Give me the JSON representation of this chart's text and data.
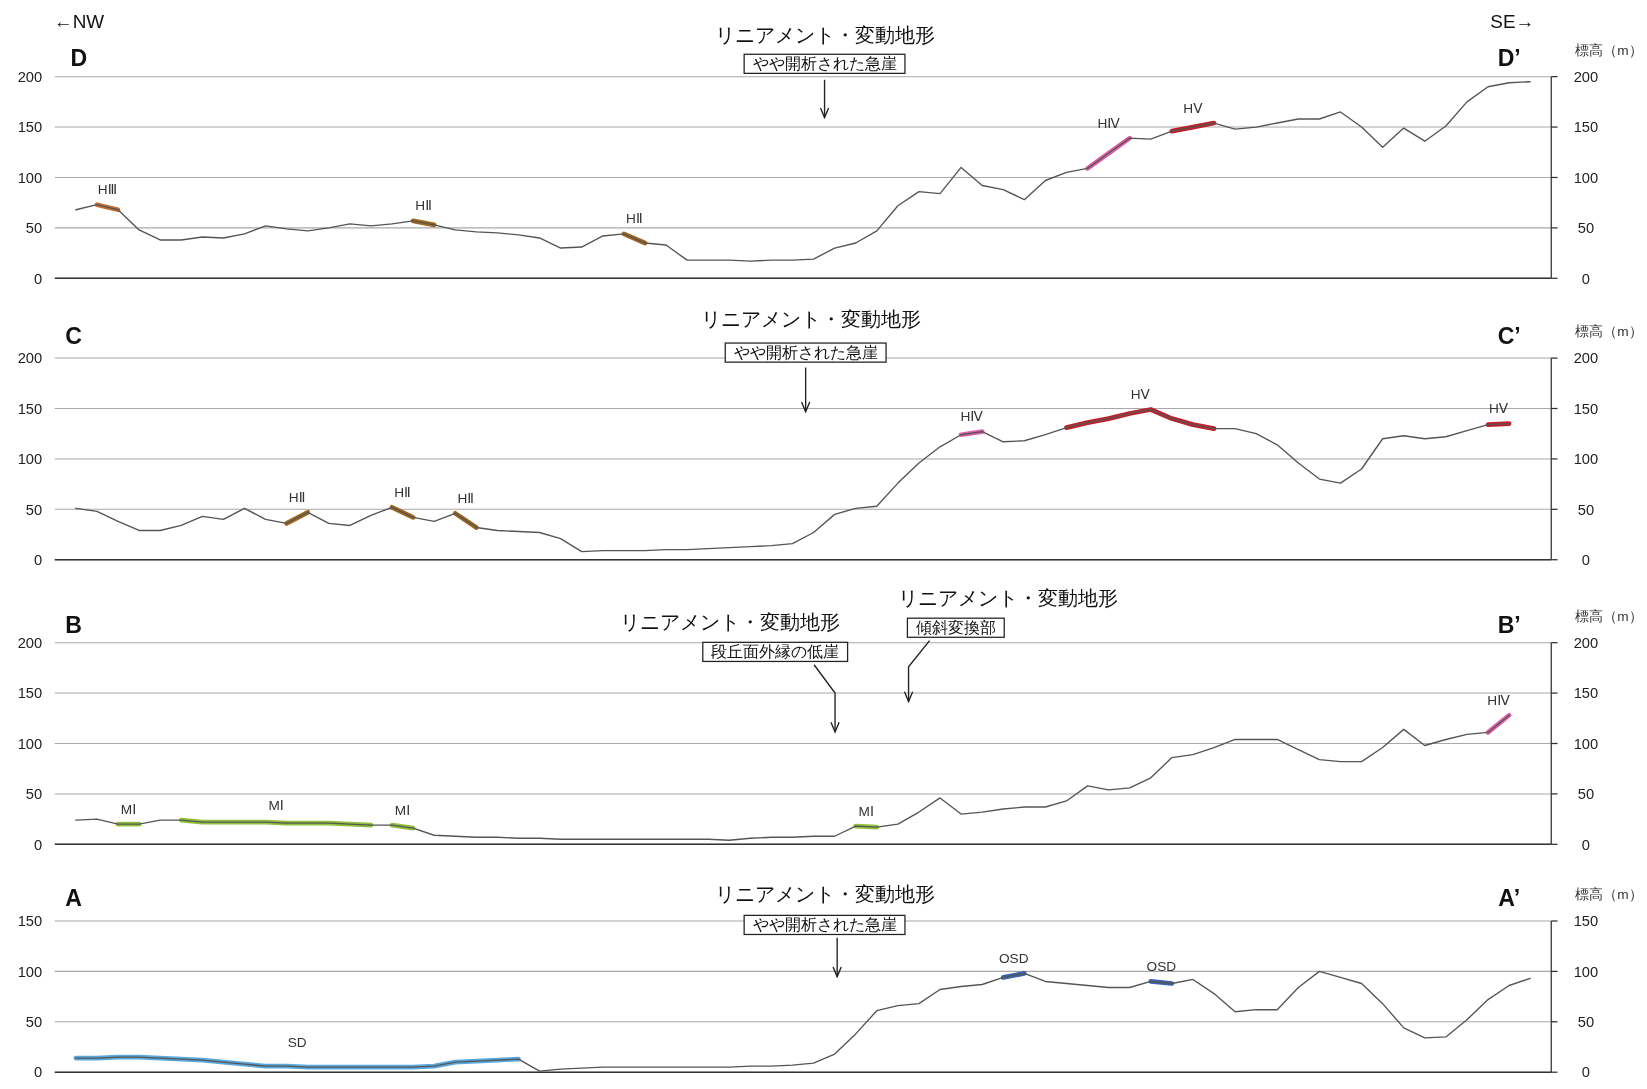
{
  "chart_data": [
    {
      "type": "line",
      "categories": [
        null,
        null,
        null,
        null,
        null,
        null,
        null,
        null,
        null,
        null,
        null,
        null,
        null,
        null,
        null,
        null,
        null,
        null,
        null,
        null,
        null,
        null,
        null,
        null,
        null,
        null,
        null,
        null,
        null,
        null,
        null,
        null,
        null,
        null,
        null,
        null,
        null,
        null,
        null,
        null,
        null,
        null,
        null,
        null,
        null,
        null,
        null,
        null,
        null,
        null,
        null,
        null,
        null,
        null,
        null,
        null,
        null,
        null,
        null,
        null,
        null,
        null,
        null,
        null,
        null,
        null,
        null,
        null,
        null,
        null,
        null,
        null
      ],
      "ylim": [
        0,
        200
      ],
      "yticks": [
        0,
        50,
        100,
        150,
        200
      ],
      "y2lim": [
        0,
        200
      ],
      "y2ticks": [
        0,
        50,
        100,
        150,
        200
      ],
      "y2label": "標高（m）",
      "grid": "y",
      "annotations": [
        "←NW",
        "SE→",
        "D",
        "D’",
        "リニアメント・変動地形",
        "やや開析された急崖"
      ],
      "series": [
        {
          "color": "#555555",
          "values": [
            null,
            68,
            73,
            68,
            48,
            38,
            38,
            41,
            40,
            44,
            52,
            49,
            47,
            50,
            54,
            52,
            54,
            57,
            53,
            48,
            46,
            45,
            43,
            40,
            30,
            31,
            42,
            44,
            35,
            33,
            18,
            18,
            18,
            17,
            18,
            18,
            19,
            30,
            35,
            47,
            72,
            86,
            84,
            110,
            92,
            88,
            78,
            97,
            105,
            109,
            124,
            139,
            138,
            146,
            150,
            154,
            148,
            150,
            154,
            158,
            158,
            165,
            150,
            130,
            149,
            136,
            151,
            175,
            190,
            194,
            195,
            null
          ]
        },
        {
          "name": "HⅢ",
          "color": "#c8702e",
          "values": [
            null,
            null,
            73,
            68,
            null,
            null,
            null,
            null,
            null,
            null,
            null,
            null,
            null,
            null,
            null,
            null,
            null,
            null,
            null,
            null,
            null,
            null,
            null,
            null,
            null,
            null,
            null,
            null,
            null,
            null,
            null,
            null,
            null,
            null,
            null,
            null,
            null,
            null,
            null,
            null,
            null,
            null,
            null,
            null,
            null,
            null,
            null,
            null,
            null,
            null,
            null,
            null,
            null,
            null,
            null,
            null,
            null,
            null,
            null,
            null,
            null,
            null,
            null,
            null,
            null,
            null,
            null,
            null,
            null,
            null,
            null,
            null
          ]
        },
        {
          "name": "HⅡ",
          "color": "#a0681e",
          "values": [
            null,
            null,
            null,
            null,
            null,
            null,
            null,
            null,
            null,
            null,
            null,
            null,
            null,
            null,
            null,
            null,
            null,
            57,
            53,
            null,
            null,
            null,
            null,
            null,
            null,
            null,
            null,
            null,
            null,
            null,
            null,
            null,
            null,
            null,
            null,
            null,
            null,
            null,
            null,
            null,
            null,
            null,
            null,
            null,
            null,
            null,
            null,
            null,
            null,
            null,
            null,
            null,
            null,
            null,
            null,
            null,
            null,
            null,
            null,
            null,
            null,
            null,
            null,
            null,
            null,
            null,
            null,
            null,
            null,
            null,
            null,
            null
          ]
        },
        {
          "name": "HⅡ",
          "color": "#a0681e",
          "values": [
            null,
            null,
            null,
            null,
            null,
            null,
            null,
            null,
            null,
            null,
            null,
            null,
            null,
            null,
            null,
            null,
            null,
            null,
            null,
            null,
            null,
            null,
            null,
            null,
            null,
            null,
            null,
            44,
            35,
            null,
            null,
            null,
            null,
            null,
            null,
            null,
            null,
            null,
            null,
            null,
            null,
            null,
            null,
            null,
            null,
            null,
            null,
            null,
            null,
            null,
            null,
            null,
            null,
            null,
            null,
            null,
            null,
            null,
            null,
            null,
            null,
            null,
            null,
            null,
            null,
            null,
            null,
            null,
            null,
            null,
            null,
            null
          ]
        },
        {
          "name": "HⅣ",
          "color": "#e060a8",
          "values": [
            null,
            null,
            null,
            null,
            null,
            null,
            null,
            null,
            null,
            null,
            null,
            null,
            null,
            null,
            null,
            null,
            null,
            null,
            null,
            null,
            null,
            null,
            null,
            null,
            null,
            null,
            null,
            null,
            null,
            null,
            null,
            null,
            null,
            null,
            null,
            null,
            null,
            null,
            null,
            null,
            null,
            null,
            null,
            null,
            null,
            null,
            null,
            null,
            null,
            109,
            124,
            139,
            null,
            null,
            null,
            null,
            null,
            null,
            null,
            null,
            null,
            null,
            null,
            null,
            null,
            null,
            null,
            null,
            null,
            null,
            null,
            null
          ]
        },
        {
          "name": "HⅤ",
          "color": "#c0202a",
          "values": [
            null,
            null,
            null,
            null,
            null,
            null,
            null,
            null,
            null,
            null,
            null,
            null,
            null,
            null,
            null,
            null,
            null,
            null,
            null,
            null,
            null,
            null,
            null,
            null,
            null,
            null,
            null,
            null,
            null,
            null,
            null,
            null,
            null,
            null,
            null,
            null,
            null,
            null,
            null,
            null,
            null,
            null,
            null,
            null,
            null,
            null,
            null,
            null,
            null,
            null,
            null,
            null,
            null,
            146,
            150,
            154,
            null,
            null,
            null,
            null,
            null,
            null,
            null,
            null,
            null,
            null,
            null,
            null,
            null,
            null,
            null,
            null
          ]
        }
      ]
    },
    {
      "type": "line",
      "categories": [
        null,
        null,
        null,
        null,
        null,
        null,
        null,
        null,
        null,
        null,
        null,
        null,
        null,
        null,
        null,
        null,
        null,
        null,
        null,
        null,
        null,
        null,
        null,
        null,
        null,
        null,
        null,
        null,
        null,
        null,
        null,
        null,
        null,
        null,
        null,
        null,
        null,
        null,
        null,
        null,
        null,
        null,
        null,
        null,
        null,
        null,
        null,
        null,
        null,
        null,
        null,
        null,
        null,
        null,
        null,
        null,
        null,
        null,
        null,
        null,
        null,
        null,
        null,
        null,
        null,
        null,
        null,
        null,
        null,
        null,
        null,
        null
      ],
      "ylim": [
        0,
        200
      ],
      "yticks": [
        0,
        50,
        100,
        150,
        200
      ],
      "y2lim": [
        0,
        200
      ],
      "y2ticks": [
        0,
        50,
        100,
        150,
        200
      ],
      "y2label": "標高（m）",
      "grid": "y",
      "annotations": [
        "C",
        "C’",
        "リニアメント・変動地形",
        "やや開析された急崖"
      ],
      "series": [
        {
          "color": "#555555",
          "values": [
            null,
            51,
            48,
            38,
            29,
            29,
            34,
            43,
            40,
            51,
            40,
            36,
            47,
            36,
            34,
            44,
            52,
            42,
            38,
            46,
            32,
            29,
            28,
            27,
            21,
            8,
            9,
            9,
            9,
            10,
            10,
            11,
            12,
            13,
            14,
            16,
            27,
            45,
            51,
            53,
            76,
            96,
            112,
            124,
            127,
            117,
            118,
            124,
            131,
            136,
            140,
            145,
            149,
            140,
            134,
            130,
            130,
            125,
            114,
            96,
            80,
            76,
            90,
            120,
            123,
            120,
            122,
            128,
            134,
            135,
            null,
            null
          ]
        },
        {
          "name": "HⅡ",
          "color": "#a0681e",
          "values": [
            null,
            null,
            null,
            null,
            null,
            null,
            null,
            null,
            null,
            null,
            null,
            36,
            47,
            null,
            null,
            null,
            null,
            null,
            null,
            null,
            null,
            null,
            null,
            null,
            null,
            null,
            null,
            null,
            null,
            null,
            null,
            null,
            null,
            null,
            null,
            null,
            null,
            null,
            null,
            null,
            null,
            null,
            null,
            null,
            null,
            null,
            null,
            null,
            null,
            null,
            null,
            null,
            null,
            null,
            null,
            null,
            null,
            null,
            null,
            null,
            null,
            null,
            null,
            null,
            null,
            null,
            null,
            null,
            null,
            null,
            null,
            null
          ]
        },
        {
          "name": "HⅡ",
          "color": "#a0681e",
          "values": [
            null,
            null,
            null,
            null,
            null,
            null,
            null,
            null,
            null,
            null,
            null,
            null,
            null,
            null,
            null,
            null,
            52,
            42,
            null,
            null,
            null,
            null,
            null,
            null,
            null,
            null,
            null,
            null,
            null,
            null,
            null,
            null,
            null,
            null,
            null,
            null,
            null,
            null,
            null,
            null,
            null,
            null,
            null,
            null,
            null,
            null,
            null,
            null,
            null,
            null,
            null,
            null,
            null,
            null,
            null,
            null,
            null,
            null,
            null,
            null,
            null,
            null,
            null,
            null,
            null,
            null,
            null,
            null,
            null,
            null,
            null,
            null
          ]
        },
        {
          "name": "HⅡ",
          "color": "#a0681e",
          "values": [
            null,
            null,
            null,
            null,
            null,
            null,
            null,
            null,
            null,
            null,
            null,
            null,
            null,
            null,
            null,
            null,
            null,
            null,
            null,
            46,
            32,
            null,
            null,
            null,
            null,
            null,
            null,
            null,
            null,
            null,
            null,
            null,
            null,
            null,
            null,
            null,
            null,
            null,
            null,
            null,
            null,
            null,
            null,
            null,
            null,
            null,
            null,
            null,
            null,
            null,
            null,
            null,
            null,
            null,
            null,
            null,
            null,
            null,
            null,
            null,
            null,
            null,
            null,
            null,
            null,
            null,
            null,
            null,
            null,
            null,
            null,
            null
          ]
        },
        {
          "name": "HⅣ",
          "color": "#e060a8",
          "values": [
            null,
            null,
            null,
            null,
            null,
            null,
            null,
            null,
            null,
            null,
            null,
            null,
            null,
            null,
            null,
            null,
            null,
            null,
            null,
            null,
            null,
            null,
            null,
            null,
            null,
            null,
            null,
            null,
            null,
            null,
            null,
            null,
            null,
            null,
            null,
            null,
            null,
            null,
            null,
            null,
            null,
            null,
            null,
            124,
            127,
            null,
            null,
            null,
            null,
            null,
            null,
            null,
            null,
            null,
            null,
            null,
            null,
            null,
            null,
            null,
            null,
            null,
            null,
            null,
            null,
            null,
            null,
            null,
            null,
            null,
            null,
            null
          ]
        },
        {
          "name": "HⅤ",
          "color": "#c0202a",
          "values": [
            null,
            null,
            null,
            null,
            null,
            null,
            null,
            null,
            null,
            null,
            null,
            null,
            null,
            null,
            null,
            null,
            null,
            null,
            null,
            null,
            null,
            null,
            null,
            null,
            null,
            null,
            null,
            null,
            null,
            null,
            null,
            null,
            null,
            null,
            null,
            null,
            null,
            null,
            null,
            null,
            null,
            null,
            null,
            null,
            null,
            null,
            null,
            null,
            131,
            136,
            140,
            145,
            149,
            140,
            134,
            130,
            null,
            null,
            null,
            null,
            null,
            null,
            null,
            null,
            null,
            null,
            null,
            null,
            null,
            null,
            null,
            null
          ]
        },
        {
          "name": "HⅤ",
          "color": "#c0202a",
          "values": [
            null,
            null,
            null,
            null,
            null,
            null,
            null,
            null,
            null,
            null,
            null,
            null,
            null,
            null,
            null,
            null,
            null,
            null,
            null,
            null,
            null,
            null,
            null,
            null,
            null,
            null,
            null,
            null,
            null,
            null,
            null,
            null,
            null,
            null,
            null,
            null,
            null,
            null,
            null,
            null,
            null,
            null,
            null,
            null,
            null,
            null,
            null,
            null,
            null,
            null,
            null,
            null,
            null,
            null,
            null,
            null,
            null,
            null,
            null,
            null,
            null,
            null,
            null,
            null,
            null,
            null,
            null,
            null,
            134,
            135,
            null,
            null
          ]
        }
      ]
    },
    {
      "type": "line",
      "categories": [
        null,
        null,
        null,
        null,
        null,
        null,
        null,
        null,
        null,
        null,
        null,
        null,
        null,
        null,
        null,
        null,
        null,
        null,
        null,
        null,
        null,
        null,
        null,
        null,
        null,
        null,
        null,
        null,
        null,
        null,
        null,
        null,
        null,
        null,
        null,
        null,
        null,
        null,
        null,
        null,
        null,
        null,
        null,
        null,
        null,
        null,
        null,
        null,
        null,
        null,
        null,
        null,
        null,
        null,
        null,
        null,
        null,
        null,
        null,
        null,
        null,
        null,
        null,
        null,
        null,
        null,
        null,
        null,
        null,
        null,
        null,
        null
      ],
      "ylim": [
        0,
        200
      ],
      "yticks": [
        0,
        50,
        100,
        150,
        200
      ],
      "y2lim": [
        0,
        200
      ],
      "y2ticks": [
        0,
        50,
        100,
        150,
        200
      ],
      "y2label": "標高（m）",
      "grid": "y",
      "annotations": [
        "B",
        "B’",
        "リニアメント・変動地形",
        "段丘面外縁の低崖",
        "リニアメント・変動地形",
        "傾斜変換部"
      ],
      "series": [
        {
          "color": "#555555",
          "values": [
            null,
            24,
            25,
            20,
            20,
            24,
            24,
            22,
            22,
            22,
            22,
            21,
            21,
            21,
            20,
            19,
            19,
            16,
            9,
            8,
            7,
            7,
            6,
            6,
            5,
            5,
            5,
            5,
            5,
            5,
            5,
            5,
            4,
            6,
            7,
            7,
            8,
            8,
            18,
            17,
            20,
            32,
            46,
            30,
            32,
            35,
            37,
            37,
            43,
            58,
            54,
            56,
            66,
            86,
            89,
            96,
            104,
            104,
            104,
            94,
            84,
            82,
            82,
            96,
            114,
            98,
            104,
            109,
            111,
            128,
            null,
            null
          ]
        },
        {
          "name": "MⅠ",
          "color": "#90c03c",
          "values": [
            null,
            null,
            null,
            20,
            20,
            null,
            null,
            null,
            null,
            null,
            null,
            null,
            null,
            null,
            null,
            null,
            null,
            null,
            null,
            null,
            null,
            null,
            null,
            null,
            null,
            null,
            null,
            null,
            null,
            null,
            null,
            null,
            null,
            null,
            null,
            null,
            null,
            null,
            null,
            null,
            null,
            null,
            null,
            null,
            null,
            null,
            null,
            null,
            null,
            null,
            null,
            null,
            null,
            null,
            null,
            null,
            null,
            null,
            null,
            null,
            null,
            null,
            null,
            null,
            null,
            null,
            null,
            null,
            null,
            null,
            null,
            null
          ]
        },
        {
          "name": "MⅠ",
          "color": "#90c03c",
          "values": [
            null,
            null,
            null,
            null,
            null,
            null,
            24,
            22,
            22,
            22,
            22,
            21,
            21,
            21,
            20,
            19,
            null,
            null,
            null,
            null,
            null,
            null,
            null,
            null,
            null,
            null,
            null,
            null,
            null,
            null,
            null,
            null,
            null,
            null,
            null,
            null,
            null,
            null,
            null,
            null,
            null,
            null,
            null,
            null,
            null,
            null,
            null,
            null,
            null,
            null,
            null,
            null,
            null,
            null,
            null,
            null,
            null,
            null,
            null,
            null,
            null,
            null,
            null,
            null,
            null,
            null,
            null,
            null,
            null,
            null,
            null,
            null
          ]
        },
        {
          "name": "MⅠ",
          "color": "#90c03c",
          "values": [
            null,
            null,
            null,
            null,
            null,
            null,
            null,
            null,
            null,
            null,
            null,
            null,
            null,
            null,
            null,
            null,
            19,
            16,
            null,
            null,
            null,
            null,
            null,
            null,
            null,
            null,
            null,
            null,
            null,
            null,
            null,
            null,
            null,
            null,
            null,
            null,
            null,
            null,
            null,
            null,
            null,
            null,
            null,
            null,
            null,
            null,
            null,
            null,
            null,
            null,
            null,
            null,
            null,
            null,
            null,
            null,
            null,
            null,
            null,
            null,
            null,
            null,
            null,
            null,
            null,
            null,
            null,
            null,
            null,
            null,
            null,
            null
          ]
        },
        {
          "name": "MⅠ",
          "color": "#90c03c",
          "values": [
            null,
            null,
            null,
            null,
            null,
            null,
            null,
            null,
            null,
            null,
            null,
            null,
            null,
            null,
            null,
            null,
            null,
            null,
            null,
            null,
            null,
            null,
            null,
            null,
            null,
            null,
            null,
            null,
            null,
            null,
            null,
            null,
            null,
            null,
            null,
            null,
            null,
            null,
            18,
            17,
            null,
            null,
            null,
            null,
            null,
            null,
            null,
            null,
            null,
            null,
            null,
            null,
            null,
            null,
            null,
            null,
            null,
            null,
            null,
            null,
            null,
            null,
            null,
            null,
            null,
            null,
            null,
            null,
            null,
            null,
            null,
            null
          ]
        },
        {
          "name": "HⅣ",
          "color": "#e060a8",
          "values": [
            null,
            null,
            null,
            null,
            null,
            null,
            null,
            null,
            null,
            null,
            null,
            null,
            null,
            null,
            null,
            null,
            null,
            null,
            null,
            null,
            null,
            null,
            null,
            null,
            null,
            null,
            null,
            null,
            null,
            null,
            null,
            null,
            null,
            null,
            null,
            null,
            null,
            null,
            null,
            null,
            null,
            null,
            null,
            null,
            null,
            null,
            null,
            null,
            null,
            null,
            null,
            null,
            null,
            null,
            null,
            null,
            null,
            null,
            null,
            null,
            null,
            null,
            null,
            null,
            null,
            null,
            null,
            null,
            111,
            128,
            null,
            null
          ]
        }
      ]
    },
    {
      "type": "line",
      "categories": [
        null,
        null,
        null,
        null,
        null,
        null,
        null,
        null,
        null,
        null,
        null,
        null,
        null,
        null,
        null,
        null,
        null,
        null,
        null,
        null,
        null,
        null,
        null,
        null,
        null,
        null,
        null,
        null,
        null,
        null,
        null,
        null,
        null,
        null,
        null,
        null,
        null,
        null,
        null,
        null,
        null,
        null,
        null,
        null,
        null,
        null,
        null,
        null,
        null,
        null,
        null,
        null,
        null,
        null,
        null,
        null,
        null,
        null,
        null,
        null,
        null,
        null,
        null,
        null,
        null,
        null,
        null,
        null,
        null,
        null,
        null,
        null
      ],
      "ylim": [
        0,
        150
      ],
      "yticks": [
        0,
        50,
        100,
        150
      ],
      "y2lim": [
        0,
        150
      ],
      "y2ticks": [
        0,
        50,
        100,
        150
      ],
      "y2label": "標高（m）",
      "grid": "y",
      "annotations": [
        "A",
        "A’",
        "リニアメント・変動地形",
        "やや開析された急崖"
      ],
      "series": [
        {
          "color": "#555555",
          "values": [
            null,
            14,
            14,
            15,
            15,
            14,
            13,
            12,
            10,
            8,
            6,
            6,
            5,
            5,
            5,
            5,
            5,
            5,
            6,
            10,
            11,
            12,
            13,
            1,
            3,
            4,
            5,
            5,
            5,
            5,
            5,
            5,
            5,
            6,
            6,
            7,
            9,
            18,
            38,
            61,
            66,
            68,
            82,
            85,
            87,
            94,
            98,
            90,
            88,
            86,
            84,
            84,
            90,
            88,
            92,
            78,
            60,
            62,
            62,
            84,
            100,
            94,
            88,
            68,
            44,
            34,
            35,
            52,
            72,
            86,
            93,
            null
          ]
        },
        {
          "name": "SD",
          "color": "#5aa8dc",
          "values": [
            null,
            14,
            14,
            15,
            15,
            14,
            13,
            12,
            10,
            8,
            6,
            6,
            5,
            5,
            5,
            5,
            5,
            5,
            6,
            10,
            11,
            12,
            13,
            null,
            null,
            null,
            null,
            null,
            null,
            null,
            null,
            null,
            null,
            null,
            null,
            null,
            null,
            null,
            null,
            null,
            null,
            null,
            null,
            null,
            null,
            null,
            null,
            null,
            null,
            null,
            null,
            null,
            null,
            null,
            null,
            null,
            null,
            null,
            null,
            null,
            null,
            null,
            null,
            null,
            null,
            null,
            null,
            null,
            null,
            null,
            null,
            null
          ]
        },
        {
          "name": "OSD",
          "color": "#3a64b0",
          "values": [
            null,
            null,
            null,
            null,
            null,
            null,
            null,
            null,
            null,
            null,
            null,
            null,
            null,
            null,
            null,
            null,
            null,
            null,
            null,
            null,
            null,
            null,
            null,
            null,
            null,
            null,
            null,
            null,
            null,
            null,
            null,
            null,
            null,
            null,
            null,
            null,
            null,
            null,
            null,
            null,
            null,
            null,
            null,
            null,
            null,
            94,
            98,
            null,
            null,
            null,
            null,
            null,
            null,
            null,
            null,
            null,
            null,
            null,
            null,
            null,
            null,
            null,
            null,
            null,
            null,
            null,
            null,
            null,
            null,
            null,
            null,
            null
          ]
        },
        {
          "name": "OSD",
          "color": "#3a64b0",
          "values": [
            null,
            null,
            null,
            null,
            null,
            null,
            null,
            null,
            null,
            null,
            null,
            null,
            null,
            null,
            null,
            null,
            null,
            null,
            null,
            null,
            null,
            null,
            null,
            null,
            null,
            null,
            null,
            null,
            null,
            null,
            null,
            null,
            null,
            null,
            null,
            null,
            null,
            null,
            null,
            null,
            null,
            null,
            null,
            null,
            null,
            null,
            null,
            null,
            null,
            null,
            null,
            null,
            90,
            88,
            null,
            null,
            null,
            null,
            null,
            null,
            null,
            null,
            null,
            null,
            null,
            null,
            null,
            null,
            null,
            null,
            null,
            null
          ]
        }
      ]
    }
  ]
}
